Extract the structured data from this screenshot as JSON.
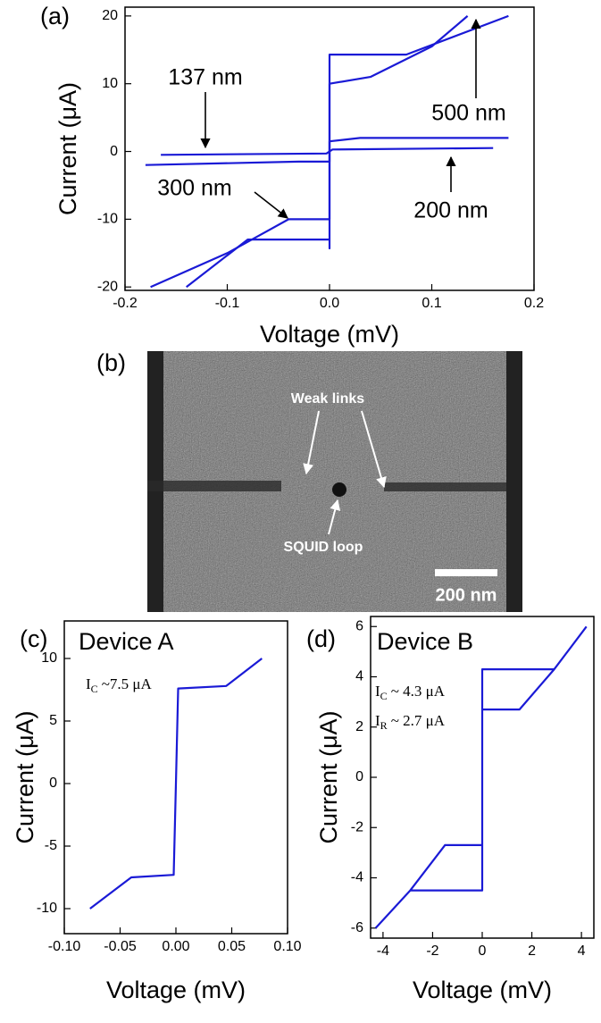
{
  "chart_data": [
    {
      "type": "line",
      "panel_label": "(a)",
      "xlabel": "Voltage (mV)",
      "ylabel": "Current (μA)",
      "xlim": [
        -0.2,
        0.2
      ],
      "ylim": [
        -20.5,
        21.3
      ],
      "xticks": [
        -0.2,
        -0.1,
        {
          "value": 0,
          "label": "0.0"
        },
        0.1,
        0.2
      ],
      "yticks": [
        -20,
        -10,
        0,
        10,
        20
      ],
      "series": [
        {
          "name": "137 nm",
          "color": "#1a1ad6",
          "x": [
            -0.165,
            -0.003,
            0,
            0.003,
            0.16
          ],
          "values": [
            -0.5,
            -0.3,
            0,
            0.3,
            0.5
          ]
        },
        {
          "name": "300 nm",
          "color": "#1a1ad6",
          "x": [
            -0.175,
            -0.1,
            -0.04,
            0,
            0,
            0.04,
            0.1,
            0.135
          ],
          "values": [
            -20,
            -15,
            -10,
            -10,
            10,
            11,
            15.5,
            20
          ]
        },
        {
          "name": "500 nm",
          "color": "#1a1ad6",
          "x": [
            -0.14,
            -0.08,
            0,
            0,
            0,
            0.075,
            0.175
          ],
          "values": [
            -20,
            -13,
            -13,
            -14.3,
            14.3,
            14.3,
            20
          ]
        },
        {
          "name": "200 nm",
          "color": "#1a1ad6",
          "x": [
            -0.18,
            -0.03,
            0,
            0,
            0.03,
            0.175
          ],
          "values": [
            -2,
            -1.5,
            -1.5,
            1.5,
            2,
            2
          ]
        }
      ]
    },
    {
      "type": "line",
      "panel_label": "(c)",
      "xlabel": "Voltage (mV)",
      "ylabel": "Current (μA)",
      "annotation": "Device A",
      "note": {
        "main": "I",
        "sub": "C",
        "rest": "~7.5 μA"
      },
      "xlim": [
        -0.1,
        0.1
      ],
      "ylim": [
        -12,
        13
      ],
      "xticks": [
        {
          "value": -0.1,
          "label": "-0.10"
        },
        -0.05,
        {
          "value": 0,
          "label": "0.00"
        },
        0.05,
        {
          "value": 0.1,
          "label": "0.10"
        }
      ],
      "yticks": [
        -10,
        -5,
        0,
        5,
        10
      ],
      "series": [
        {
          "name": "Device A",
          "color": "#1a1ad6",
          "x": [
            -0.077,
            -0.04,
            -0.002,
            0,
            0.002,
            0.045,
            0.077
          ],
          "values": [
            -10,
            -7.5,
            -7.3,
            0,
            7.6,
            7.8,
            10
          ]
        }
      ]
    },
    {
      "type": "line",
      "panel_label": "(d)",
      "xlabel": "Voltage (mV)",
      "ylabel": "Current (μA)",
      "annotation": "Device B",
      "notes": [
        {
          "main": "I",
          "sub": "C",
          "rest": "~ 4.3 μA"
        },
        {
          "main": "I",
          "sub": "R",
          "rest": "~ 2.7 μA"
        }
      ],
      "xlim": [
        -4.5,
        4.5
      ],
      "ylim": [
        -6.4,
        6.4
      ],
      "xticks": [
        -4,
        -2,
        0,
        2,
        4
      ],
      "yticks": [
        -6,
        -4,
        -2,
        0,
        2,
        4,
        6
      ],
      "series": [
        {
          "name": "Device B",
          "color": "#1a1ad6",
          "x": [
            -4.3,
            -2.9,
            0,
            0,
            2.9,
            4.2,
            null,
            -2.9,
            -1.5,
            0,
            0,
            1.5,
            2.9
          ],
          "values": [
            -6,
            -4.5,
            -4.5,
            4.3,
            4.3,
            6,
            null,
            -4.5,
            -2.7,
            -2.7,
            2.7,
            2.7,
            4.3
          ]
        }
      ]
    }
  ],
  "image": {
    "panel_label": "(b)",
    "annotations": [
      "Weak links",
      "SQUID loop"
    ],
    "scale_bar": "200 nm"
  }
}
